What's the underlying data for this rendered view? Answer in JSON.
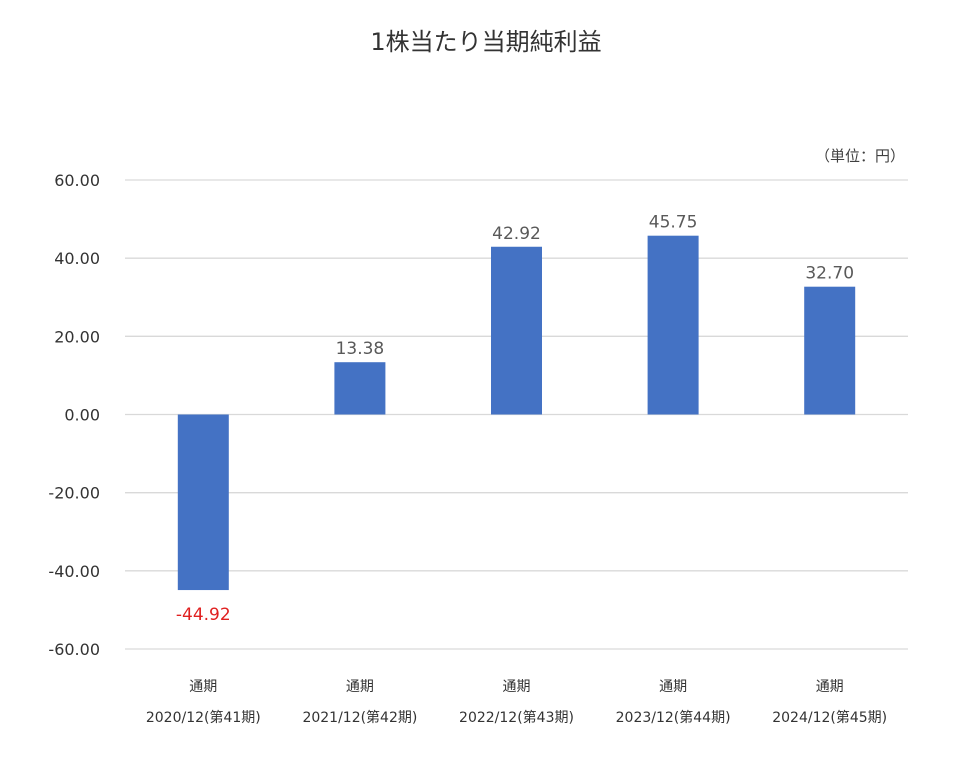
{
  "chart_data": {
    "type": "bar",
    "title": "1株当たり当期純利益",
    "unit_label": "（単位：円）",
    "categories": [
      {
        "line1": "通期",
        "line2": "2020/12(第41期)"
      },
      {
        "line1": "通期",
        "line2": "2021/12(第42期)"
      },
      {
        "line1": "通期",
        "line2": "2022/12(第43期)"
      },
      {
        "line1": "通期",
        "line2": "2023/12(第44期)"
      },
      {
        "line1": "通期",
        "line2": "2024/12(第45期)"
      }
    ],
    "values": [
      -44.92,
      13.38,
      42.92,
      45.75,
      32.7
    ],
    "value_labels": [
      "-44.92",
      "13.38",
      "42.92",
      "45.75",
      "32.70"
    ],
    "ylim": [
      -60,
      60
    ],
    "yticks": [
      {
        "value": 60,
        "label": "60.00"
      },
      {
        "value": 40,
        "label": "40.00"
      },
      {
        "value": 20,
        "label": "20.00"
      },
      {
        "value": 0,
        "label": "0.00"
      },
      {
        "value": -20,
        "label": "-20.00"
      },
      {
        "value": -40,
        "label": "-40.00"
      },
      {
        "value": -60,
        "label": "-60.00"
      }
    ],
    "grid": true,
    "legend": "none",
    "colors": {
      "bar": "#4472c4",
      "negative_label": "#e02020",
      "label": "#595959"
    }
  }
}
